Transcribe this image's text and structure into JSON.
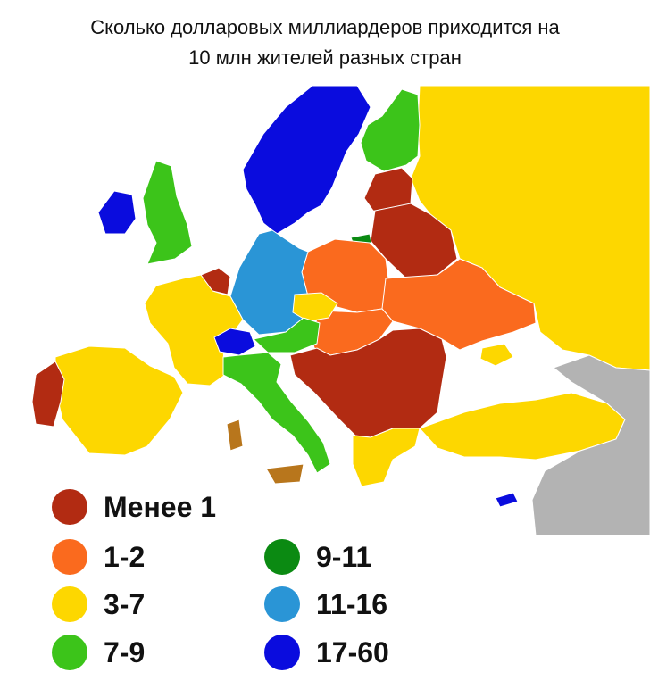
{
  "title": {
    "line1": "Сколько долларовых миллиардеров приходится на",
    "line2": "10 млн жителей разных стран"
  },
  "colors": {
    "sea": "#ffffff",
    "no_data": "#b3b3b3",
    "less_1": "#b22b12",
    "c1_2": "#fa6a1e",
    "c3_7": "#fdd700",
    "c7_9": "#3cc41a",
    "c9_11": "#0b8a12",
    "c11_16": "#2a95d6",
    "c17_60": "#0a0cde",
    "special_brown": "#b8761c"
  },
  "legend": [
    {
      "label": "Менее 1",
      "color": "#b22b12"
    },
    {
      "label": "1-2",
      "color": "#fa6a1e"
    },
    {
      "label": "3-7",
      "color": "#fdd700"
    },
    {
      "label": "7-9",
      "color": "#3cc41a"
    },
    {
      "label": "9-11",
      "color": "#0b8a12"
    },
    {
      "label": "11-16",
      "color": "#2a95d6"
    },
    {
      "label": "17-60",
      "color": "#0a0cde"
    }
  ]
}
